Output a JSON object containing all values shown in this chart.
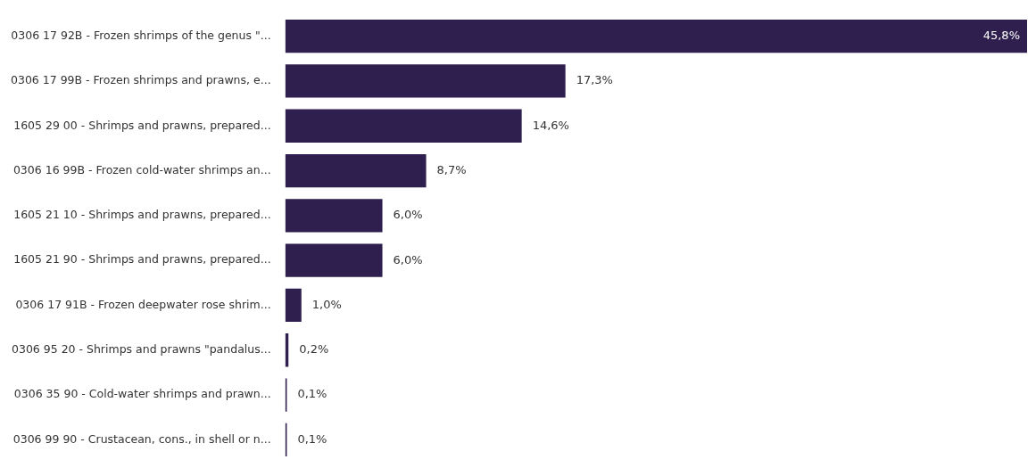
{
  "chart_data": {
    "type": "bar",
    "orientation": "horizontal",
    "categories": [
      "0306 17 92B - Frozen shrimps of the genus \"...",
      "0306 17 99B - Frozen shrimps and prawns, e...",
      "1605 29 00 - Shrimps and prawns, prepared...",
      "0306 16 99B - Frozen cold-water shrimps an...",
      "1605 21 10 - Shrimps and prawns, prepared...",
      "1605 21 90 - Shrimps and prawns, prepared...",
      "0306 17 91B - Frozen deepwater rose shrim...",
      "0306 95 20 - Shrimps and prawns \"pandalus...",
      "0306 35 90 - Cold-water shrimps and prawn...",
      "0306 99 90 - Crustacean, cons., in shell or n..."
    ],
    "values": [
      45.8,
      17.3,
      14.6,
      8.7,
      6.0,
      6.0,
      1.0,
      0.2,
      0.1,
      0.1
    ],
    "value_labels": [
      "45,8%",
      "17,3%",
      "14,6%",
      "8,7%",
      "6,0%",
      "6,0%",
      "1,0%",
      "0,2%",
      "0,1%",
      "0,1%"
    ],
    "color": "#2e1f4f"
  }
}
